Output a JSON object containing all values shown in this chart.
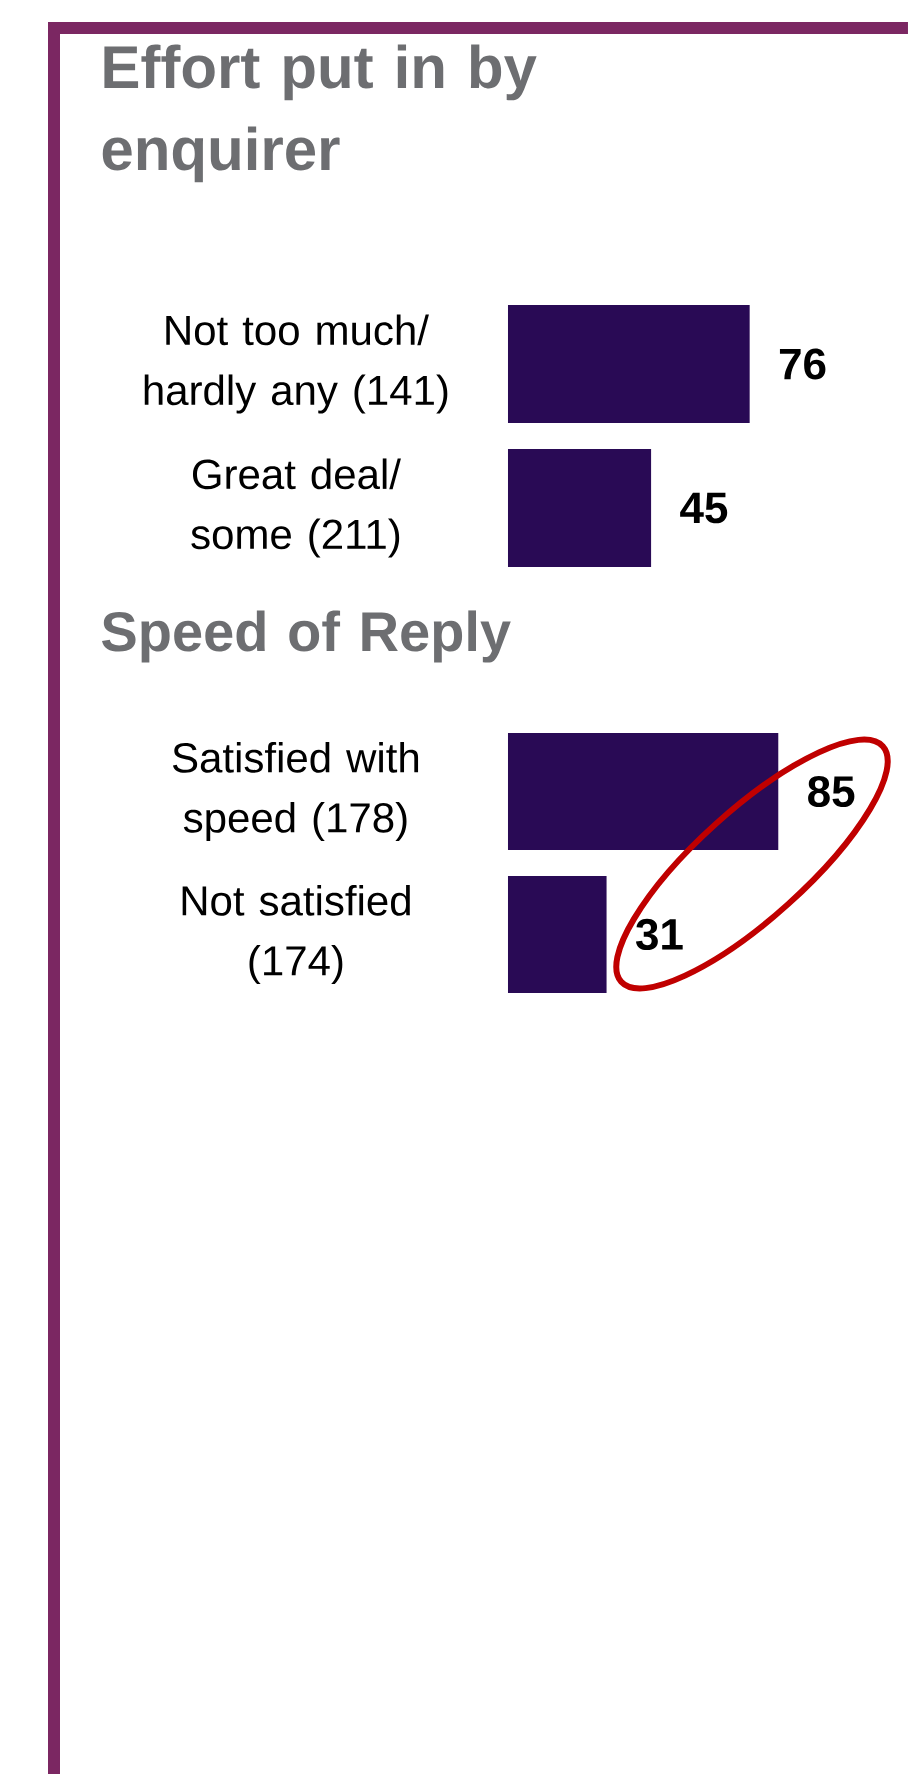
{
  "chart_data": [
    {
      "type": "bar",
      "orientation": "horizontal",
      "title": "Effort put in by enquirer",
      "categories": [
        "Not too much/ hardly any (141)",
        "Great deal/ some (211)"
      ],
      "values": [
        76,
        45
      ],
      "color": "#290a55",
      "data_labels": true,
      "tick_labels": "y"
    },
    {
      "type": "bar",
      "orientation": "horizontal",
      "title": "Speed of Reply",
      "categories": [
        "Satisfied with speed (178)",
        "Not satisfied (174)"
      ],
      "values": [
        85,
        31
      ],
      "color": "#290a55",
      "data_labels": true,
      "tick_labels": "y"
    }
  ]
}
